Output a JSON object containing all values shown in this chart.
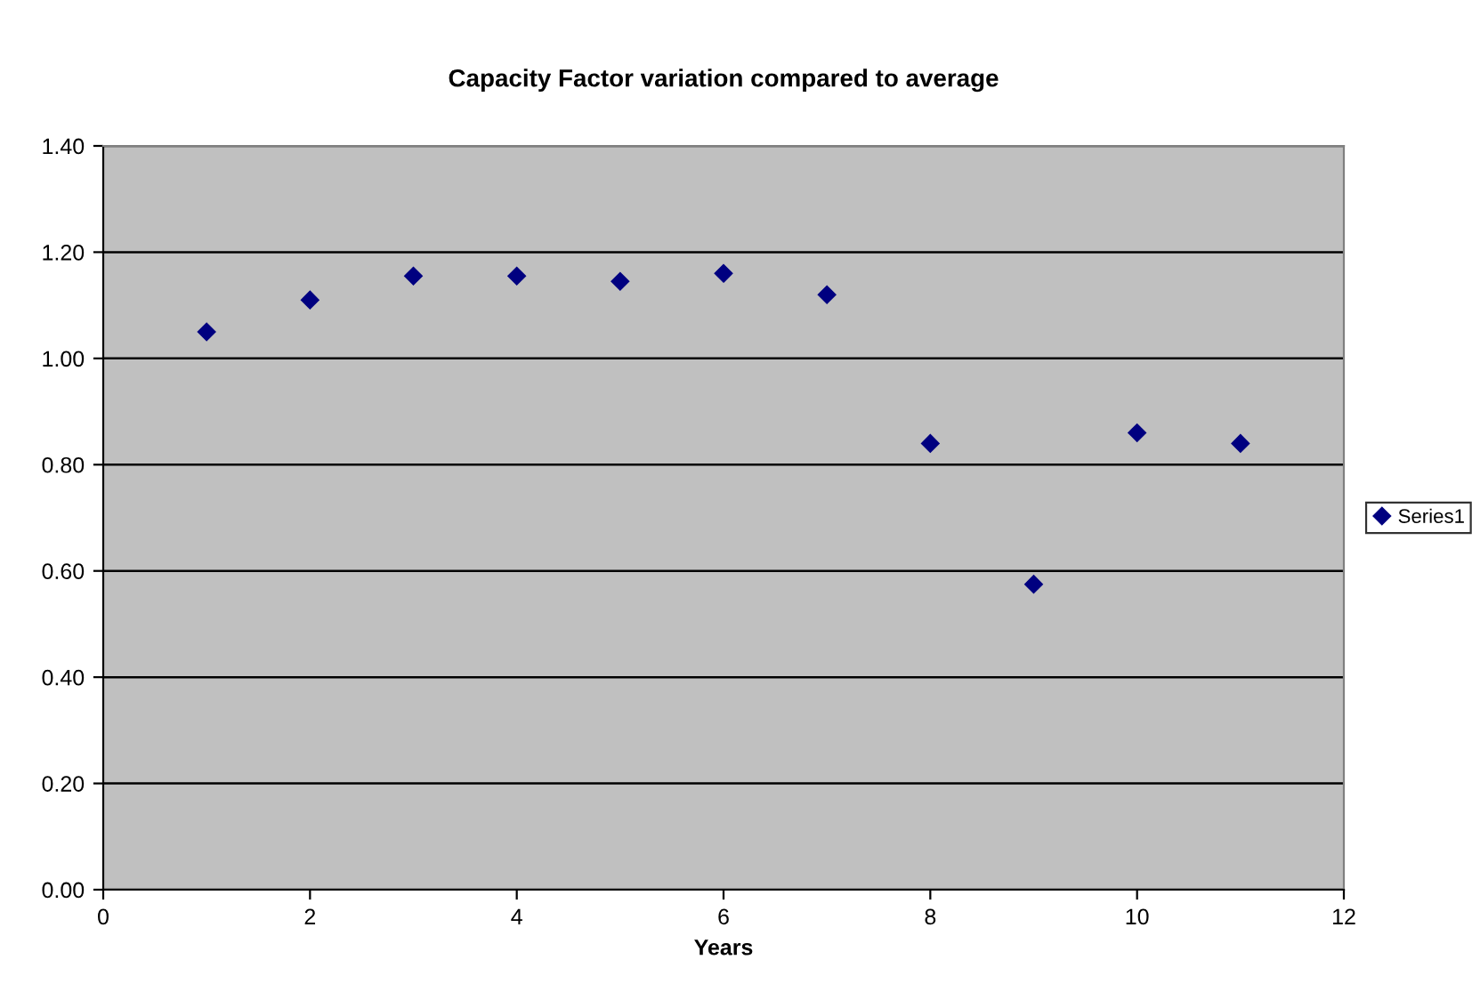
{
  "chart_data": {
    "type": "scatter",
    "title": "Capacity Factor variation compared to average",
    "xlabel": "Years",
    "x": [
      1,
      2,
      3,
      4,
      5,
      6,
      7,
      8,
      9,
      10,
      11
    ],
    "series": [
      {
        "name": "Series1",
        "color": "#000080",
        "values": [
          1.05,
          1.11,
          1.155,
          1.155,
          1.145,
          1.16,
          1.12,
          0.84,
          0.575,
          0.86,
          0.84
        ]
      }
    ],
    "xlim": [
      0,
      12
    ],
    "xticks": [
      0,
      2,
      4,
      6,
      8,
      10,
      12
    ],
    "ylim": [
      0,
      1.4
    ],
    "yticks": [
      {
        "value": 0,
        "label": "0.00"
      },
      {
        "value": 0.2,
        "label": "0.20"
      },
      {
        "value": 0.4,
        "label": "0.40"
      },
      {
        "value": 0.6,
        "label": "0.60"
      },
      {
        "value": 0.8,
        "label": "0.80"
      },
      {
        "value": 1.0,
        "label": "1.00"
      },
      {
        "value": 1.2,
        "label": "1.20"
      },
      {
        "value": 1.4,
        "label": "1.40"
      }
    ],
    "grid": "y",
    "legend": "right",
    "marker": "diamond"
  }
}
